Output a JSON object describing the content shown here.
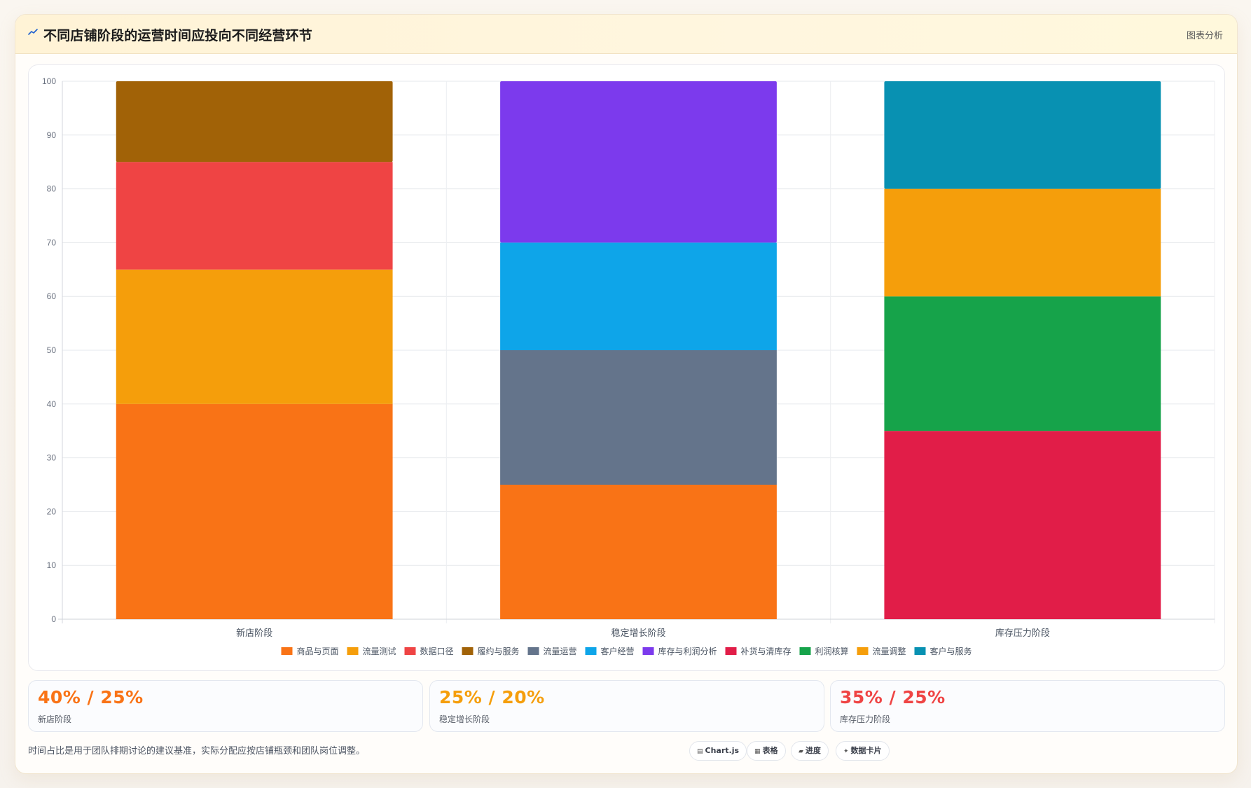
{
  "header": {
    "title": "不同店铺阶段的运营时间应投向不同经营环节",
    "tag": "图表分析"
  },
  "chart_data": {
    "type": "bar",
    "stacked": true,
    "title": "不同店铺阶段的运营时间应投向不同经营环节",
    "xlabel": "",
    "ylabel": "",
    "ylim": [
      0,
      100
    ],
    "yticks": [
      0,
      10,
      20,
      30,
      40,
      50,
      60,
      70,
      80,
      90,
      100
    ],
    "grid": true,
    "legend": "bottom",
    "categories": [
      "新店阶段",
      "稳定增长阶段",
      "库存压力阶段"
    ],
    "series": [
      {
        "name": "商品与页面",
        "color": "#f97316",
        "values": [
          40,
          25,
          0
        ]
      },
      {
        "name": "流量测试",
        "color": "#f59e0b",
        "values": [
          25,
          0,
          0
        ]
      },
      {
        "name": "数据口径",
        "color": "#ef4444",
        "values": [
          20,
          0,
          0
        ]
      },
      {
        "name": "履约与服务",
        "color": "#a16207",
        "values": [
          15,
          0,
          0
        ]
      },
      {
        "name": "流量运营",
        "color": "#64748b",
        "values": [
          0,
          25,
          0
        ]
      },
      {
        "name": "客户经营",
        "color": "#0ea5e9",
        "values": [
          0,
          20,
          0
        ]
      },
      {
        "name": "库存与利润分析",
        "color": "#7c3aed",
        "values": [
          0,
          30,
          0
        ]
      },
      {
        "name": "补货与清库存",
        "color": "#e11d48",
        "values": [
          0,
          0,
          35
        ]
      },
      {
        "name": "利润核算",
        "color": "#16a34a",
        "values": [
          0,
          0,
          25
        ]
      },
      {
        "name": "流量调整",
        "color": "#f59e0b",
        "values": [
          0,
          0,
          20
        ]
      },
      {
        "name": "客户与服务",
        "color": "#0891b2",
        "values": [
          0,
          0,
          20
        ]
      }
    ]
  },
  "stats": [
    {
      "value": "40% / 25%",
      "label": "新店阶段",
      "color": "#f97316"
    },
    {
      "value": "25% / 20%",
      "label": "稳定增长阶段",
      "color": "#f59e0b"
    },
    {
      "value": "35% / 25%",
      "label": "库存压力阶段",
      "color": "#ef4444"
    }
  ],
  "footnote": "时间占比是用于团队排期讨论的建议基准，实际分配应按店铺瓶颈和团队岗位调整。",
  "chips": [
    {
      "icon": "chart-icon",
      "glyph": "▤",
      "label": "Chart.js"
    },
    {
      "icon": "table-icon",
      "glyph": "▦",
      "label": "表格"
    },
    {
      "icon": "progress-icon",
      "glyph": "▰",
      "label": "进度"
    },
    {
      "icon": "sparkle-icon",
      "glyph": "✦",
      "label": "数据卡片"
    }
  ]
}
